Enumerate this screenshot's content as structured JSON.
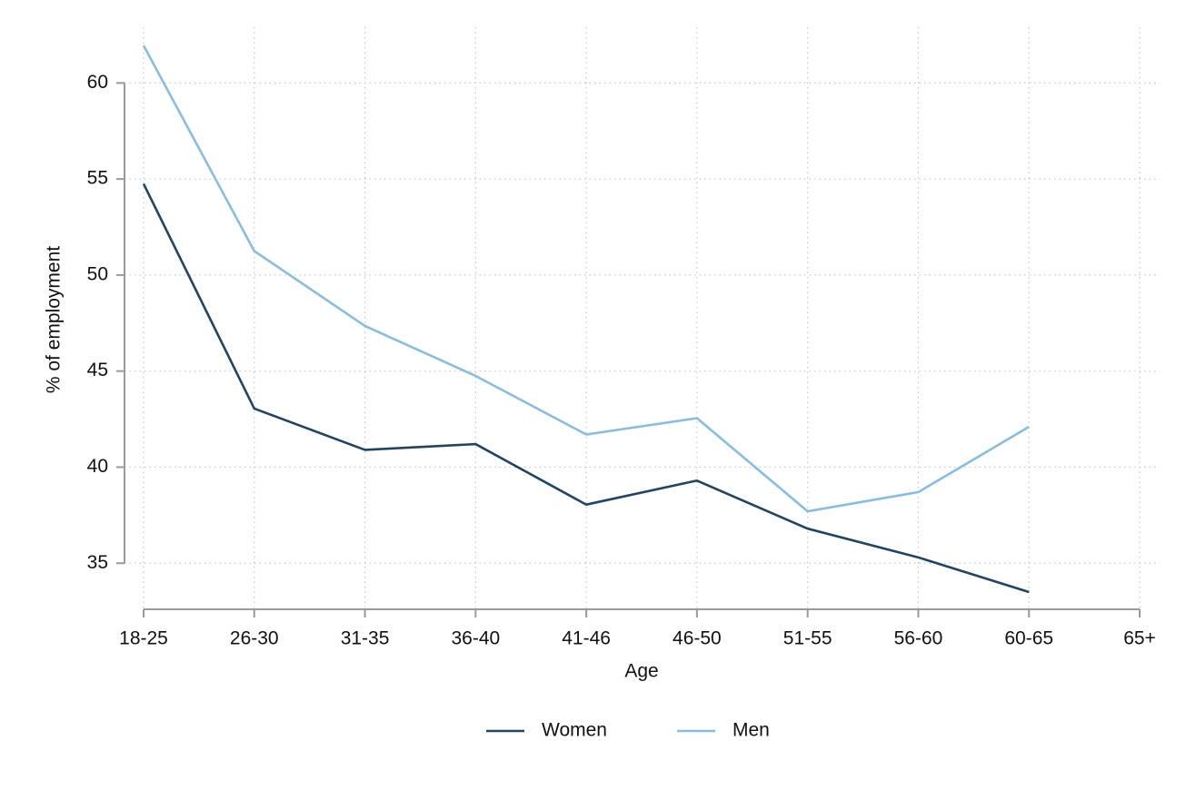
{
  "chart_data": {
    "type": "line",
    "x_label": "Age",
    "y_label": "% of employment",
    "categories": [
      "18-25",
      "26-30",
      "31-35",
      "36-40",
      "41-46",
      "46-50",
      "51-55",
      "56-60",
      "60-65",
      "65+"
    ],
    "series": [
      {
        "name": "Women",
        "color": "#1f4466",
        "values": [
          54.75,
          43.05,
          40.9,
          41.2,
          38.05,
          39.3,
          36.8,
          35.3,
          33.5,
          null
        ]
      },
      {
        "name": "Men",
        "color": "#86bde4",
        "values": [
          61.95,
          51.25,
          47.35,
          44.75,
          41.7,
          42.55,
          37.7,
          38.7,
          42.1,
          null
        ]
      }
    ],
    "ylim": [
      32.6,
      62.9
    ],
    "yticks": [
      35,
      40,
      45,
      50,
      55,
      60
    ],
    "grid": true,
    "legend": "bottom"
  }
}
